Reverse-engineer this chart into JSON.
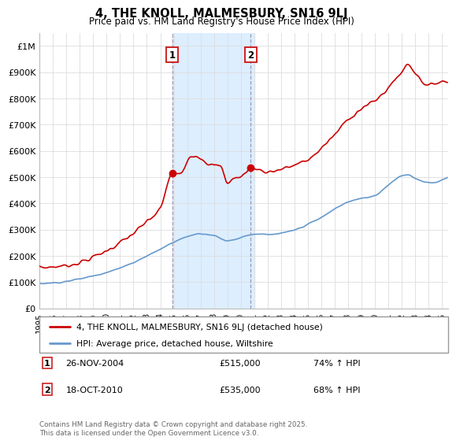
{
  "title": "4, THE KNOLL, MALMESBURY, SN16 9LJ",
  "subtitle": "Price paid vs. HM Land Registry's House Price Index (HPI)",
  "ylabel_ticks": [
    "£0",
    "£100K",
    "£200K",
    "£300K",
    "£400K",
    "£500K",
    "£600K",
    "£700K",
    "£800K",
    "£900K",
    "£1M"
  ],
  "ytick_values": [
    0,
    100000,
    200000,
    300000,
    400000,
    500000,
    600000,
    700000,
    800000,
    900000,
    1000000
  ],
  "ylim": [
    0,
    1050000
  ],
  "xlim_start": 1995.0,
  "xlim_end": 2025.5,
  "grid_color": "#dddddd",
  "background_color": "#ffffff",
  "plot_bg_color": "#ffffff",
  "red_line_color": "#cc0000",
  "blue_line_color": "#6699cc",
  "shade_color": "#ddeeff",
  "shade_x0": 2004.9,
  "shade_x1": 2011.0,
  "dashed_line_color": "#aaaacc",
  "marker1_x": 2004.9,
  "marker1_y": 515000,
  "marker2_x": 2010.75,
  "marker2_y": 535000,
  "ann1_x": 2004.9,
  "ann1_label": "1",
  "ann2_x": 2010.75,
  "ann2_label": "2",
  "legend_line1": "4, THE KNOLL, MALMESBURY, SN16 9LJ (detached house)",
  "legend_line2": "HPI: Average price, detached house, Wiltshire",
  "table_rows": [
    {
      "num": "1",
      "date": "26-NOV-2004",
      "price": "£515,000",
      "hpi": "74% ↑ HPI"
    },
    {
      "num": "2",
      "date": "18-OCT-2010",
      "price": "£535,000",
      "hpi": "68% ↑ HPI"
    }
  ],
  "footer": "Contains HM Land Registry data © Crown copyright and database right 2025.\nThis data is licensed under the Open Government Licence v3.0.",
  "xtick_years": [
    1995,
    1996,
    1997,
    1998,
    1999,
    2000,
    2001,
    2002,
    2003,
    2004,
    2005,
    2006,
    2007,
    2008,
    2009,
    2010,
    2011,
    2012,
    2013,
    2014,
    2015,
    2016,
    2017,
    2018,
    2019,
    2020,
    2021,
    2022,
    2023,
    2024,
    2025
  ]
}
